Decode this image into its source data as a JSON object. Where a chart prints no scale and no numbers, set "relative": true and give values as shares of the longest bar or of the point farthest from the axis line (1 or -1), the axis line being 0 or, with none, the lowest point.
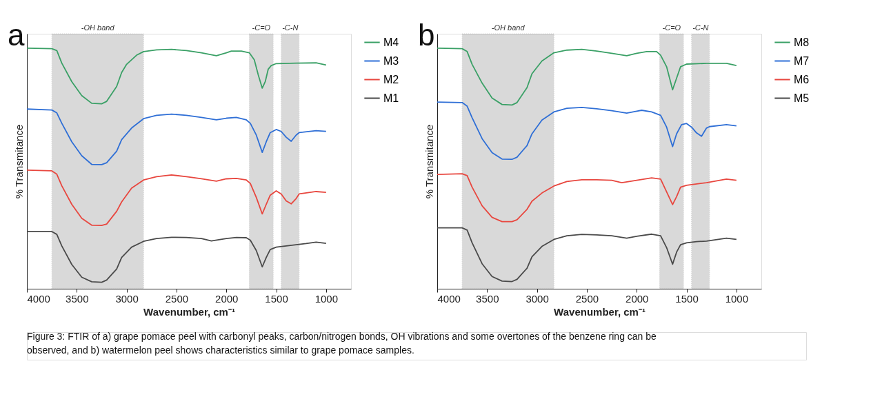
{
  "chart_data": [
    {
      "type": "line",
      "relative": true,
      "xlabel": "Wavenumber, cm⁻¹",
      "ylabel": "% Transmitance",
      "xlim": [
        4000,
        750
      ],
      "xticks": [
        4000,
        3500,
        3000,
        2500,
        2000,
        1500,
        1000
      ],
      "legend": "right",
      "annotations": [
        "a",
        "Figure 3: FTIR of a) grape pomace peel with carbonyl peaks, carbon/nitrogen bonds, OH vibrations and some overtones of the benzene ring can be observed, and b) watermelon peel shows characteristics similar to grape pomace samples."
      ],
      "bands": [
        {
          "axis": "x",
          "from": 3750,
          "to": 2830,
          "label": "-OH band"
        },
        {
          "axis": "x",
          "from": 1770,
          "to": 1530,
          "label": "-C=O"
        },
        {
          "axis": "x",
          "from": 1450,
          "to": 1270,
          "label": "-C-N"
        }
      ],
      "series": [
        {
          "name": "M4",
          "color": "#3aa066",
          "x": [
            4000,
            3750,
            3700,
            3650,
            3550,
            3450,
            3350,
            3250,
            3200,
            3100,
            3050,
            3000,
            2900,
            2830,
            2700,
            2550,
            2400,
            2250,
            2100,
            2000,
            1950,
            1850,
            1770,
            1720,
            1680,
            1640,
            1610,
            1580,
            1550,
            1500,
            1300,
            1100,
            1000
          ],
          "values": [
            1.0,
            0.998,
            0.99,
            0.938,
            0.861,
            0.803,
            0.771,
            0.769,
            0.779,
            0.841,
            0.899,
            0.933,
            0.971,
            0.986,
            0.993,
            0.995,
            0.99,
            0.981,
            0.969,
            0.981,
            0.988,
            0.988,
            0.981,
            0.952,
            0.889,
            0.834,
            0.861,
            0.913,
            0.928,
            0.936,
            0.938,
            0.939,
            0.93
          ]
        },
        {
          "name": "M3",
          "color": "#2f6fd6",
          "x": [
            4000,
            3750,
            3700,
            3650,
            3550,
            3450,
            3350,
            3250,
            3200,
            3100,
            3050,
            2950,
            2830,
            2700,
            2550,
            2400,
            2250,
            2100,
            2000,
            1900,
            1800,
            1760,
            1700,
            1640,
            1600,
            1560,
            1500,
            1450,
            1400,
            1350,
            1300,
            1270,
            1100,
            1000
          ],
          "values": [
            0.747,
            0.743,
            0.731,
            0.688,
            0.611,
            0.553,
            0.517,
            0.516,
            0.524,
            0.572,
            0.62,
            0.668,
            0.707,
            0.721,
            0.726,
            0.721,
            0.712,
            0.702,
            0.709,
            0.712,
            0.702,
            0.688,
            0.639,
            0.567,
            0.611,
            0.649,
            0.662,
            0.654,
            0.63,
            0.613,
            0.639,
            0.649,
            0.657,
            0.654
          ]
        },
        {
          "name": "M2",
          "color": "#e8473f",
          "x": [
            4000,
            3750,
            3700,
            3650,
            3550,
            3450,
            3350,
            3250,
            3200,
            3100,
            3050,
            2950,
            2830,
            2700,
            2550,
            2400,
            2250,
            2100,
            2000,
            1900,
            1800,
            1760,
            1700,
            1640,
            1600,
            1560,
            1500,
            1450,
            1400,
            1350,
            1300,
            1270,
            1100,
            1000
          ],
          "values": [
            0.493,
            0.49,
            0.476,
            0.428,
            0.351,
            0.293,
            0.264,
            0.263,
            0.269,
            0.322,
            0.361,
            0.418,
            0.452,
            0.466,
            0.473,
            0.466,
            0.457,
            0.447,
            0.457,
            0.459,
            0.452,
            0.438,
            0.38,
            0.311,
            0.351,
            0.389,
            0.407,
            0.394,
            0.365,
            0.353,
            0.375,
            0.394,
            0.404,
            0.401
          ]
        },
        {
          "name": "M1",
          "color": "#4a4a4a",
          "x": [
            4000,
            3750,
            3700,
            3650,
            3550,
            3450,
            3350,
            3250,
            3200,
            3100,
            3050,
            2950,
            2830,
            2700,
            2550,
            2400,
            2250,
            2150,
            2000,
            1900,
            1800,
            1760,
            1700,
            1640,
            1600,
            1560,
            1500,
            1400,
            1300,
            1200,
            1100,
            1000
          ],
          "values": [
            0.238,
            0.238,
            0.226,
            0.178,
            0.101,
            0.048,
            0.029,
            0.027,
            0.036,
            0.082,
            0.13,
            0.173,
            0.197,
            0.209,
            0.214,
            0.213,
            0.209,
            0.199,
            0.209,
            0.213,
            0.212,
            0.202,
            0.159,
            0.091,
            0.13,
            0.163,
            0.173,
            0.178,
            0.183,
            0.188,
            0.194,
            0.189
          ]
        }
      ]
    },
    {
      "type": "line",
      "relative": true,
      "xlabel": "Wavenumber, cm⁻¹",
      "ylabel": "% Transmitance",
      "xlim": [
        4000,
        750
      ],
      "xticks": [
        4000,
        3500,
        3000,
        2500,
        2000,
        1500,
        1000
      ],
      "legend": "right",
      "annotations": [
        "b"
      ],
      "bands": [
        {
          "axis": "x",
          "from": 3750,
          "to": 2830,
          "label": "-OH band"
        },
        {
          "axis": "x",
          "from": 1770,
          "to": 1530,
          "label": "-C=O"
        },
        {
          "axis": "x",
          "from": 1450,
          "to": 1270,
          "label": "-C-N"
        }
      ],
      "series": [
        {
          "name": "M8",
          "color": "#3aa066",
          "x": [
            4000,
            3750,
            3700,
            3650,
            3550,
            3450,
            3350,
            3250,
            3200,
            3100,
            3050,
            2950,
            2830,
            2700,
            2550,
            2400,
            2250,
            2100,
            2000,
            1900,
            1800,
            1760,
            1700,
            1640,
            1600,
            1560,
            1500,
            1300,
            1100,
            1000
          ],
          "values": [
            1.0,
            0.998,
            0.986,
            0.933,
            0.855,
            0.793,
            0.766,
            0.764,
            0.774,
            0.836,
            0.894,
            0.947,
            0.981,
            0.992,
            0.995,
            0.988,
            0.979,
            0.969,
            0.979,
            0.986,
            0.986,
            0.971,
            0.923,
            0.827,
            0.875,
            0.923,
            0.934,
            0.937,
            0.937,
            0.928
          ]
        },
        {
          "name": "M7",
          "color": "#2f6fd6",
          "x": [
            4000,
            3750,
            3700,
            3650,
            3550,
            3450,
            3350,
            3250,
            3200,
            3100,
            3050,
            2950,
            2830,
            2700,
            2550,
            2400,
            2250,
            2100,
            2000,
            1950,
            1850,
            1760,
            1700,
            1640,
            1600,
            1550,
            1500,
            1450,
            1400,
            1350,
            1300,
            1270,
            1100,
            1000
          ],
          "values": [
            0.776,
            0.774,
            0.759,
            0.711,
            0.624,
            0.566,
            0.539,
            0.538,
            0.547,
            0.595,
            0.644,
            0.701,
            0.735,
            0.75,
            0.754,
            0.748,
            0.74,
            0.73,
            0.738,
            0.742,
            0.735,
            0.721,
            0.672,
            0.591,
            0.644,
            0.682,
            0.687,
            0.672,
            0.648,
            0.634,
            0.668,
            0.674,
            0.682,
            0.677
          ]
        },
        {
          "name": "M6",
          "color": "#e8473f",
          "x": [
            4000,
            3750,
            3700,
            3650,
            3550,
            3450,
            3350,
            3250,
            3200,
            3100,
            3050,
            2950,
            2830,
            2700,
            2550,
            2400,
            2250,
            2150,
            2000,
            1850,
            1760,
            1700,
            1640,
            1600,
            1560,
            1500,
            1300,
            1100,
            1000
          ],
          "values": [
            0.475,
            0.478,
            0.47,
            0.422,
            0.345,
            0.297,
            0.279,
            0.279,
            0.287,
            0.33,
            0.364,
            0.398,
            0.427,
            0.446,
            0.453,
            0.453,
            0.451,
            0.441,
            0.451,
            0.461,
            0.456,
            0.403,
            0.35,
            0.383,
            0.422,
            0.43,
            0.441,
            0.456,
            0.451
          ]
        },
        {
          "name": "M5",
          "color": "#4a4a4a",
          "x": [
            4000,
            3750,
            3700,
            3650,
            3550,
            3450,
            3350,
            3250,
            3200,
            3100,
            3050,
            2950,
            2830,
            2700,
            2550,
            2400,
            2250,
            2100,
            2000,
            1850,
            1760,
            1700,
            1640,
            1600,
            1560,
            1500,
            1400,
            1300,
            1100,
            1000
          ],
          "values": [
            0.253,
            0.253,
            0.244,
            0.191,
            0.104,
            0.051,
            0.032,
            0.03,
            0.039,
            0.085,
            0.133,
            0.176,
            0.205,
            0.22,
            0.226,
            0.224,
            0.22,
            0.21,
            0.218,
            0.227,
            0.22,
            0.171,
            0.102,
            0.152,
            0.183,
            0.191,
            0.196,
            0.198,
            0.21,
            0.205
          ]
        }
      ]
    }
  ]
}
